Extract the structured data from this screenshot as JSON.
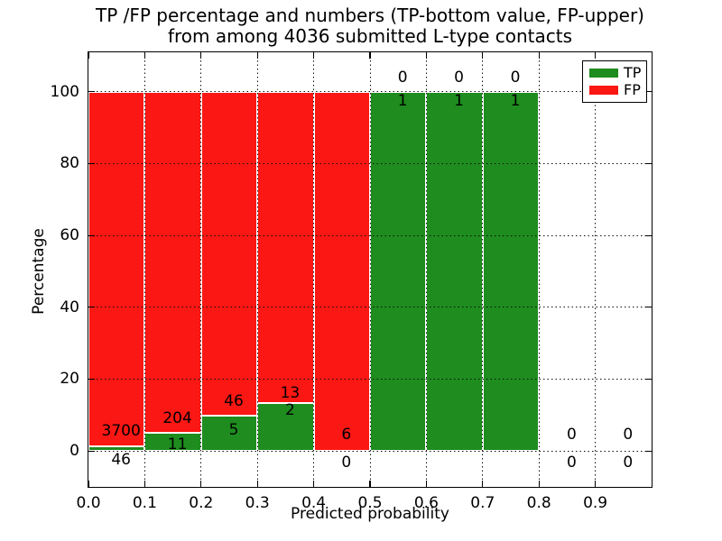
{
  "title": {
    "line1": "TP /FP percentage and numbers (TP-bottom value, FP-upper)",
    "line2": "from among 4036 submitted L-type contacts"
  },
  "axes": {
    "ylabel": "Percentage",
    "xlabel": "Predicted probability",
    "x_tick_labels": [
      "0.0",
      "0.1",
      "0.2",
      "0.3",
      "0.4",
      "0.5",
      "0.6",
      "0.7",
      "0.8",
      "0.9"
    ],
    "x_tick_values": [
      0.0,
      0.1,
      0.2,
      0.3,
      0.4,
      0.5,
      0.6,
      0.7,
      0.8,
      0.9
    ],
    "y_tick_labels": [
      "0",
      "20",
      "40",
      "60",
      "80",
      "100"
    ],
    "y_tick_values": [
      0,
      20,
      40,
      60,
      80,
      100
    ]
  },
  "legend": {
    "items": [
      {
        "label": "TP",
        "color": "#1e8c1e"
      },
      {
        "label": "FP",
        "color": "#fb1713"
      }
    ]
  },
  "colors": {
    "tp_green": "#1e8c1e",
    "fp_red": "#fb1713",
    "bar_edge": "#ffffff",
    "grid": "#111111",
    "text": "#000000",
    "background": "#ffffff"
  },
  "chart_data": {
    "type": "bar",
    "stacked": true,
    "title": "TP /FP percentage and numbers (TP-bottom value, FP-upper) from among 4036 submitted L-type contacts",
    "total_submitted_contacts": 4036,
    "xlabel": "Predicted probability",
    "ylabel": "Percentage",
    "xlim": [
      0.0,
      1.0
    ],
    "ylim": [
      -10,
      111
    ],
    "grid": "dotted, on, drawn above bars",
    "legend_position": "upper right",
    "bin_width": 0.1,
    "bin_starts": [
      0.0,
      0.1,
      0.2,
      0.3,
      0.4,
      0.5,
      0.6,
      0.7,
      0.8,
      0.9
    ],
    "bar_drawn": [
      true,
      true,
      true,
      true,
      true,
      true,
      true,
      true,
      false,
      false
    ],
    "series": [
      {
        "name": "TP",
        "color": "#1e8c1e",
        "counts": [
          46,
          11,
          5,
          2,
          0,
          1,
          1,
          1,
          0,
          0
        ],
        "pct": [
          1.23,
          5.12,
          9.8,
          13.33,
          0,
          100,
          100,
          100,
          0,
          0
        ]
      },
      {
        "name": "FP",
        "color": "#fb1713",
        "counts": [
          3700,
          204,
          46,
          13,
          6,
          0,
          0,
          0,
          0,
          0
        ],
        "pct": [
          98.77,
          94.88,
          90.2,
          86.67,
          100,
          0,
          0,
          0,
          0,
          0
        ]
      }
    ],
    "tp_labels": [
      "46",
      "11",
      "5",
      "2",
      "0",
      "1",
      "1",
      "1",
      "0",
      "0"
    ],
    "fp_labels": [
      "3700",
      "204",
      "46",
      "13",
      "6",
      "0",
      "0",
      "0",
      "0",
      "0"
    ],
    "tp_label_y_pct": [
      -2.5,
      1.8,
      5.8,
      11.3,
      -3.2,
      97.5,
      97.5,
      97.5,
      -3.2,
      -3.2
    ],
    "fp_label_y_pct": [
      5.5,
      9.0,
      13.8,
      16.1,
      4.5,
      104.0,
      104.0,
      104.0,
      4.5,
      4.5
    ]
  }
}
